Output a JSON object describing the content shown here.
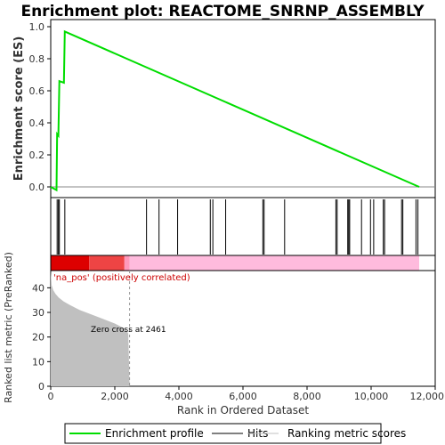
{
  "title": "Enrichment plot: REACTOME_SNRNP_ASSEMBLY",
  "colors": {
    "profile": "#00dd00",
    "hit": "#000000",
    "metric_fill": "#c0c0c0",
    "pos_label": "#cc0000",
    "ranking_bar_dark": "#dd0000",
    "ranking_bar_mid": "#ee4444",
    "ranking_bar_light": "#ffbbdd"
  },
  "chart_data": [
    {
      "type": "line",
      "panel": "enrichment",
      "ylabel": "Enrichment score (ES)",
      "ylim": [
        -0.05,
        1.0
      ],
      "yticks": [
        0.0,
        0.2,
        0.4,
        0.6,
        0.8,
        1.0
      ],
      "ytick_labels": [
        "0.0",
        "0.2",
        "0.4",
        "0.6",
        "0.8",
        "1.0"
      ],
      "xlim": [
        0,
        12000
      ],
      "grid": false,
      "series": [
        {
          "name": "Enrichment profile",
          "x": [
            0,
            180,
            200,
            240,
            270,
            410,
            440,
            11500
          ],
          "y": [
            0.0,
            -0.02,
            0.33,
            0.32,
            0.66,
            0.65,
            0.97,
            0.0
          ]
        }
      ]
    },
    {
      "type": "scatter",
      "panel": "hits",
      "name": "Hits",
      "x": [
        200,
        240,
        270,
        440,
        2990,
        3380,
        3960,
        4980,
        5060,
        5460,
        6620,
        6660,
        7300,
        8900,
        8940,
        9270,
        9300,
        9330,
        9700,
        9980,
        10080,
        10380,
        10420,
        10950,
        10990,
        11400,
        11460
      ]
    },
    {
      "type": "area",
      "panel": "ranking",
      "ylabel": "Ranked list metric (PreRanked)",
      "xlabel": "Rank in Ordered Dataset",
      "ylim": [
        0,
        47
      ],
      "yticks": [
        0,
        10,
        20,
        30,
        40
      ],
      "ytick_labels": [
        "0",
        "10",
        "20",
        "30",
        "40"
      ],
      "xlim": [
        0,
        12000
      ],
      "xticks": [
        0,
        2000,
        4000,
        6000,
        8000,
        10000,
        12000
      ],
      "xtick_labels": [
        "0",
        "2,000",
        "4,000",
        "6,000",
        "8,000",
        "10,000",
        "12,000"
      ],
      "series": [
        {
          "name": "Ranking metric scores",
          "x": [
            0,
            30,
            80,
            150,
            250,
            400,
            600,
            900,
            1200,
            1600,
            2000,
            2300,
            2420,
            2461
          ],
          "y": [
            47,
            41,
            39,
            37.5,
            36,
            34.5,
            33,
            31,
            29.5,
            27.5,
            25.5,
            23.5,
            21.5,
            0
          ]
        }
      ],
      "pos_label": "'na_pos' (positively correlated)",
      "zero_cross_label": "Zero cross at 2461",
      "zero_cross": 2461
    }
  ],
  "legend": {
    "items": [
      {
        "label": "Enrichment profile"
      },
      {
        "label": "Hits"
      },
      {
        "label": "Ranking metric scores"
      }
    ]
  }
}
